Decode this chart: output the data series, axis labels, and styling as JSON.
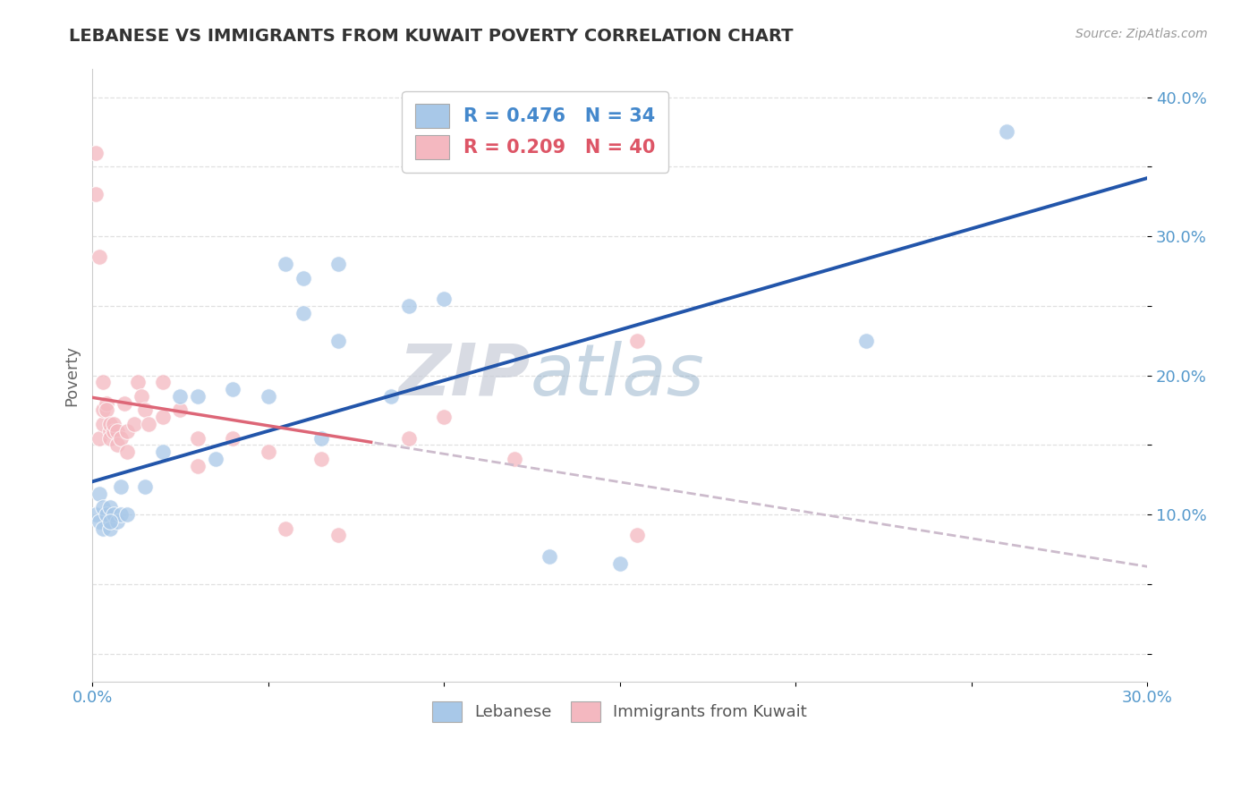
{
  "title": "LEBANESE VS IMMIGRANTS FROM KUWAIT POVERTY CORRELATION CHART",
  "source": "Source: ZipAtlas.com",
  "ylabel": "Poverty",
  "xmin": 0.0,
  "xmax": 0.3,
  "ymin": -0.02,
  "ymax": 0.42,
  "x_ticks": [
    0.0,
    0.05,
    0.1,
    0.15,
    0.2,
    0.25,
    0.3
  ],
  "x_tick_labels": [
    "0.0%",
    "",
    "",
    "",
    "",
    "",
    "30.0%"
  ],
  "y_ticks": [
    0.0,
    0.05,
    0.1,
    0.15,
    0.2,
    0.25,
    0.3,
    0.35,
    0.4
  ],
  "y_tick_labels": [
    "",
    "",
    "10.0%",
    "",
    "20.0%",
    "",
    "30.0%",
    "",
    "40.0%"
  ],
  "lebanese_color": "#a8c8e8",
  "kuwait_color": "#f4b8c0",
  "lebanese_line_color": "#2255aa",
  "kuwait_line_color": "#dd6677",
  "dashed_line_color": "#ccbbcc",
  "lebanese_R": 0.476,
  "lebanese_N": 34,
  "kuwait_R": 0.209,
  "kuwait_N": 40,
  "lebanese_x": [
    0.001,
    0.002,
    0.002,
    0.003,
    0.003,
    0.004,
    0.005,
    0.005,
    0.006,
    0.007,
    0.008,
    0.01,
    0.015,
    0.02,
    0.025,
    0.03,
    0.04,
    0.05,
    0.055,
    0.06,
    0.07,
    0.09,
    0.1,
    0.13,
    0.15,
    0.22,
    0.26,
    0.06,
    0.07,
    0.085,
    0.035,
    0.065,
    0.005,
    0.008
  ],
  "lebanese_y": [
    0.1,
    0.095,
    0.115,
    0.105,
    0.09,
    0.1,
    0.09,
    0.105,
    0.1,
    0.095,
    0.1,
    0.1,
    0.12,
    0.145,
    0.185,
    0.185,
    0.19,
    0.185,
    0.28,
    0.27,
    0.225,
    0.25,
    0.255,
    0.07,
    0.065,
    0.225,
    0.375,
    0.245,
    0.28,
    0.185,
    0.14,
    0.155,
    0.095,
    0.12
  ],
  "kuwait_x": [
    0.001,
    0.001,
    0.002,
    0.002,
    0.003,
    0.003,
    0.003,
    0.004,
    0.004,
    0.005,
    0.005,
    0.005,
    0.006,
    0.006,
    0.007,
    0.007,
    0.008,
    0.009,
    0.01,
    0.01,
    0.012,
    0.013,
    0.014,
    0.015,
    0.016,
    0.02,
    0.02,
    0.025,
    0.03,
    0.03,
    0.04,
    0.05,
    0.055,
    0.065,
    0.07,
    0.09,
    0.1,
    0.12,
    0.155,
    0.155
  ],
  "kuwait_y": [
    0.36,
    0.33,
    0.285,
    0.155,
    0.165,
    0.175,
    0.195,
    0.18,
    0.175,
    0.16,
    0.165,
    0.155,
    0.16,
    0.165,
    0.16,
    0.15,
    0.155,
    0.18,
    0.145,
    0.16,
    0.165,
    0.195,
    0.185,
    0.175,
    0.165,
    0.195,
    0.17,
    0.175,
    0.135,
    0.155,
    0.155,
    0.145,
    0.09,
    0.14,
    0.085,
    0.155,
    0.17,
    0.14,
    0.225,
    0.085
  ],
  "watermark_zip": "ZIP",
  "watermark_atlas": "atlas",
  "background_color": "#ffffff",
  "grid_color": "#dddddd"
}
